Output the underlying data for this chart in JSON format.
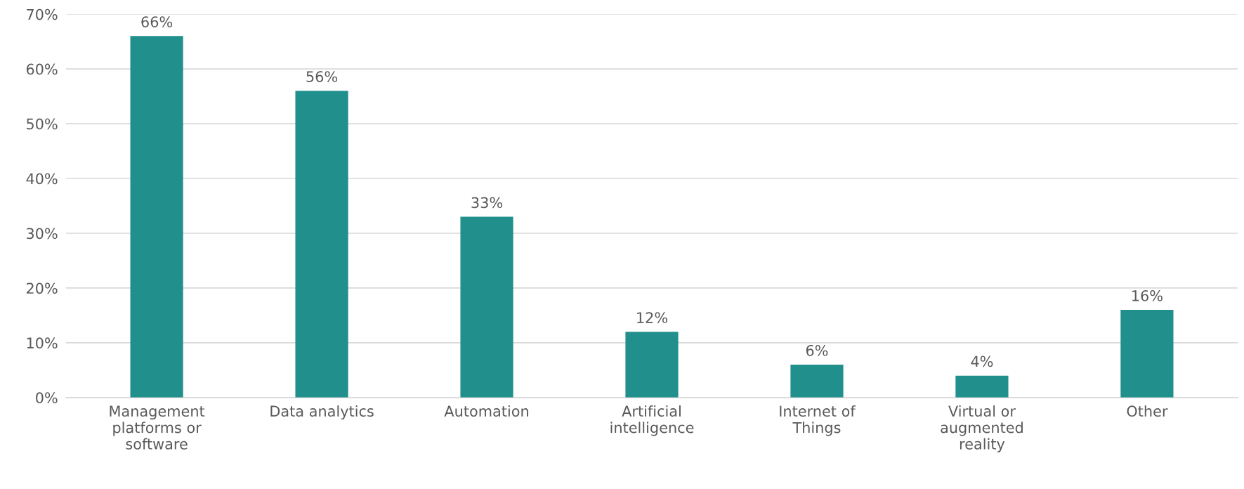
{
  "chart_data": {
    "type": "bar",
    "categories": [
      "Management platforms or software",
      "Data analytics",
      "Automation",
      "Artificial intelligence",
      "Internet of Things",
      "Virtual or augmented reality",
      "Other"
    ],
    "values": [
      66,
      56,
      33,
      12,
      6,
      4,
      16
    ],
    "value_labels": [
      "66%",
      "56%",
      "33%",
      "12%",
      "6%",
      "4%",
      "16%"
    ],
    "color": "#21908c",
    "ylim": [
      0,
      70
    ],
    "yticks": [
      {
        "value": 0,
        "label": "0%"
      },
      {
        "value": 10,
        "label": "10%"
      },
      {
        "value": 20,
        "label": "20%"
      },
      {
        "value": 30,
        "label": "30%"
      },
      {
        "value": 40,
        "label": "40%"
      },
      {
        "value": 50,
        "label": "50%"
      },
      {
        "value": 60,
        "label": "60%"
      },
      {
        "value": 70,
        "label": "70%"
      }
    ],
    "grid": "y",
    "legend": false
  }
}
